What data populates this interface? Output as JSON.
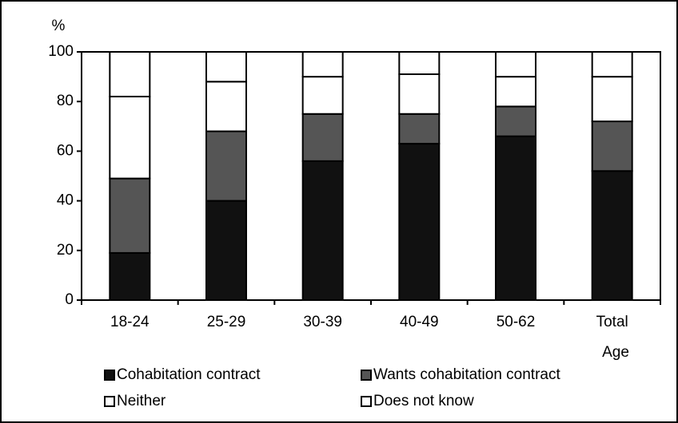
{
  "chart_data": {
    "type": "stacked_bar",
    "y_label": "%",
    "x_label": "Age",
    "categories": [
      "18-24",
      "25-29",
      "30-39",
      "40-49",
      "50-62",
      "Total"
    ],
    "series": [
      {
        "name": "Cohabitation contract",
        "color": "#111111",
        "values": [
          19,
          40,
          56,
          63,
          66,
          52
        ]
      },
      {
        "name": "Wants cohabitation contract",
        "color": "#555555",
        "values": [
          30,
          28,
          19,
          12,
          12,
          20
        ]
      },
      {
        "name": "Neither",
        "color": "#ffffff",
        "values": [
          33,
          20,
          15,
          16,
          12,
          18
        ]
      },
      {
        "name": "Does not know",
        "color": "#ffffff",
        "values": [
          18,
          12,
          10,
          9,
          10,
          10
        ]
      }
    ],
    "ylim": [
      0,
      100
    ],
    "yticks": [
      0,
      20,
      40,
      60,
      80,
      100
    ]
  }
}
